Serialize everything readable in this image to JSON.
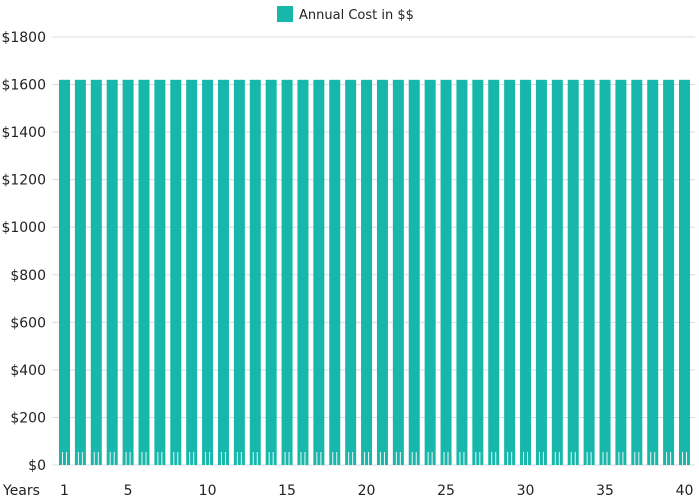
{
  "legend": {
    "label": "Annual Cost in $$",
    "swatch_color": "#17b8ab"
  },
  "x_axis_label": "Years",
  "chart_data": {
    "type": "bar",
    "title": "",
    "xlabel": "Years",
    "ylabel": "",
    "legend_position": "top-center",
    "grid": true,
    "ylim": [
      0,
      1800
    ],
    "y_ticks": [
      0,
      200,
      400,
      600,
      800,
      1000,
      1200,
      1400,
      1600,
      1800
    ],
    "y_tick_labels": [
      "$0",
      "$200",
      "$400",
      "$600",
      "$800",
      "$1000",
      "$1200",
      "$1400",
      "$1600",
      "$1800"
    ],
    "x_tick_labels": [
      "1",
      "5",
      "10",
      "15",
      "20",
      "25",
      "30",
      "35",
      "40"
    ],
    "categories": [
      1,
      2,
      3,
      4,
      5,
      6,
      7,
      8,
      9,
      10,
      11,
      12,
      13,
      14,
      15,
      16,
      17,
      18,
      19,
      20,
      21,
      22,
      23,
      24,
      25,
      26,
      27,
      28,
      29,
      30,
      31,
      32,
      33,
      34,
      35,
      36,
      37,
      38,
      39,
      40
    ],
    "series": [
      {
        "name": "Annual Cost in $$",
        "color": "#17b8ab",
        "values": [
          1620,
          1620,
          1620,
          1620,
          1620,
          1620,
          1620,
          1620,
          1620,
          1620,
          1620,
          1620,
          1620,
          1620,
          1620,
          1620,
          1620,
          1620,
          1620,
          1620,
          1620,
          1620,
          1620,
          1620,
          1620,
          1620,
          1620,
          1620,
          1620,
          1620,
          1620,
          1620,
          1620,
          1620,
          1620,
          1620,
          1620,
          1620,
          1620,
          1620
        ]
      }
    ]
  }
}
